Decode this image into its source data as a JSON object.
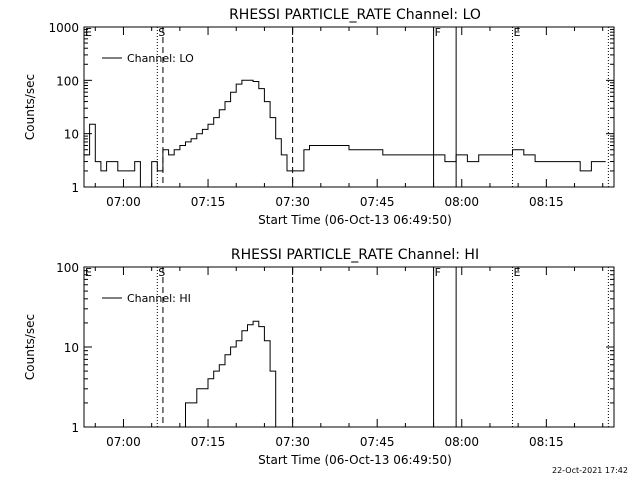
{
  "footer": {
    "timestamp": "22-Oct-2021 17:42"
  },
  "colors": {
    "line": "#000000",
    "background": "#ffffff"
  },
  "chart_data": [
    {
      "type": "line",
      "title": "RHESSI PARTICLE_RATE Channel: LO",
      "xlabel": "Start Time (06-Oct-13 06:49:50)",
      "ylabel": "Counts/sec",
      "yscale": "log",
      "ylim": [
        1,
        1000
      ],
      "xlim": [
        "06:53",
        "08:27"
      ],
      "xticks": [
        "07:00",
        "07:15",
        "07:30",
        "07:45",
        "08:00",
        "08:15"
      ],
      "yticks": [
        "1",
        "10",
        "100",
        "1000"
      ],
      "legend": {
        "position": "top-left",
        "entries": [
          "Channel: LO"
        ]
      },
      "grid": false,
      "markers": [
        {
          "time": "06:53",
          "label": "E",
          "style": "dotted"
        },
        {
          "time": "07:06",
          "label": "S",
          "style": "dotted"
        },
        {
          "time": "07:07",
          "label": "",
          "style": "dashed"
        },
        {
          "time": "07:30",
          "label": "",
          "style": "dashed"
        },
        {
          "time": "07:55",
          "label": "F",
          "style": "solid"
        },
        {
          "time": "07:59",
          "label": "",
          "style": "solid"
        },
        {
          "time": "08:09",
          "label": "E",
          "style": "dotted"
        },
        {
          "time": "08:26",
          "label": "",
          "style": "dotted"
        }
      ],
      "series": [
        {
          "name": "Channel: LO",
          "x": [
            "06:53",
            "06:54",
            "06:55",
            "06:56",
            "06:57",
            "06:58",
            "06:59",
            "07:00",
            "07:01",
            "07:02",
            "07:03",
            "07:04",
            "07:05",
            "07:06",
            "07:07",
            "07:08",
            "07:09",
            "07:10",
            "07:11",
            "07:12",
            "07:13",
            "07:14",
            "07:15",
            "07:16",
            "07:17",
            "07:18",
            "07:19",
            "07:20",
            "07:21",
            "07:22",
            "07:23",
            "07:24",
            "07:25",
            "07:26",
            "07:27",
            "07:28",
            "07:29",
            "07:30",
            "07:31",
            "07:32",
            "07:33",
            "07:35",
            "07:37",
            "07:40",
            "07:43",
            "07:46",
            "07:49",
            "07:52",
            "07:55",
            "07:57",
            "07:59",
            "08:01",
            "08:03",
            "08:05",
            "08:07",
            "08:09",
            "08:11",
            "08:13",
            "08:15",
            "08:17",
            "08:19",
            "08:21",
            "08:23",
            "08:25"
          ],
          "y": [
            4,
            15,
            3,
            2,
            3,
            3,
            2,
            2,
            2,
            3,
            1,
            1,
            3,
            2,
            5,
            4,
            5,
            6,
            7,
            8,
            10,
            12,
            15,
            20,
            28,
            40,
            60,
            85,
            100,
            100,
            95,
            70,
            40,
            20,
            8,
            4,
            2,
            2,
            2,
            5,
            6,
            6,
            6,
            5,
            5,
            4,
            4,
            4,
            4,
            3,
            4,
            3,
            4,
            4,
            4,
            5,
            4,
            3,
            3,
            3,
            3,
            2,
            3,
            3
          ]
        }
      ]
    },
    {
      "type": "line",
      "title": "RHESSI PARTICLE_RATE Channel: HI",
      "xlabel": "Start Time (06-Oct-13 06:49:50)",
      "ylabel": "Counts/sec",
      "yscale": "log",
      "ylim": [
        1,
        100
      ],
      "xlim": [
        "06:53",
        "08:27"
      ],
      "xticks": [
        "07:00",
        "07:15",
        "07:30",
        "07:45",
        "08:00",
        "08:15"
      ],
      "yticks": [
        "1",
        "10",
        "100"
      ],
      "legend": {
        "position": "top-left",
        "entries": [
          "Channel: HI"
        ]
      },
      "grid": false,
      "markers": [
        {
          "time": "06:53",
          "label": "E",
          "style": "dotted"
        },
        {
          "time": "07:06",
          "label": "S",
          "style": "dotted"
        },
        {
          "time": "07:07",
          "label": "",
          "style": "dashed"
        },
        {
          "time": "07:30",
          "label": "",
          "style": "dashed"
        },
        {
          "time": "07:55",
          "label": "F",
          "style": "solid"
        },
        {
          "time": "07:59",
          "label": "",
          "style": "solid"
        },
        {
          "time": "08:09",
          "label": "E",
          "style": "dotted"
        },
        {
          "time": "08:26",
          "label": "",
          "style": "dotted"
        }
      ],
      "series": [
        {
          "name": "Channel: HI",
          "x": [
            "07:10",
            "07:11",
            "07:12",
            "07:13",
            "07:14",
            "07:15",
            "07:16",
            "07:17",
            "07:18",
            "07:19",
            "07:20",
            "07:21",
            "07:22",
            "07:23",
            "07:24",
            "07:25",
            "07:26",
            "07:27"
          ],
          "y": [
            1,
            2,
            2,
            3,
            3,
            4,
            5,
            6,
            8,
            10,
            12,
            16,
            19,
            21,
            18,
            12,
            5,
            1
          ]
        }
      ]
    }
  ]
}
